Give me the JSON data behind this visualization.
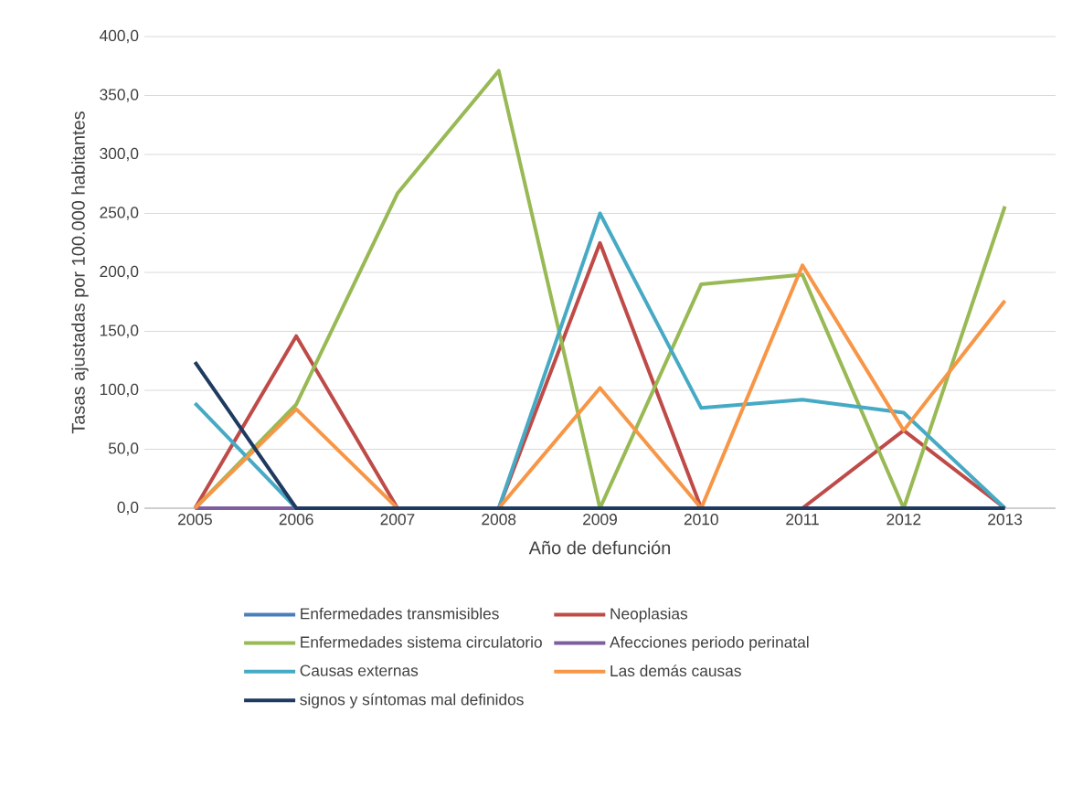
{
  "chart_data": {
    "type": "line",
    "xlabel": "Año de defunción",
    "ylabel": "Tasas ajustadas por 100.000 habitantes",
    "categories": [
      "2005",
      "2006",
      "2007",
      "2008",
      "2009",
      "2010",
      "2011",
      "2012",
      "2013"
    ],
    "ylim": [
      0,
      400
    ],
    "yticks": [
      {
        "value": 0,
        "label": "0,0"
      },
      {
        "value": 50,
        "label": "50,0"
      },
      {
        "value": 100,
        "label": "100,0"
      },
      {
        "value": 150,
        "label": "150,0"
      },
      {
        "value": 200,
        "label": "200,0"
      },
      {
        "value": 250,
        "label": "250,0"
      },
      {
        "value": 300,
        "label": "300,0"
      },
      {
        "value": 350,
        "label": "350,0"
      },
      {
        "value": 400,
        "label": "400,0"
      }
    ],
    "grid": "y",
    "legend": "bottom",
    "marker": "none",
    "line_style": "solid",
    "series": [
      {
        "name": "Enfermedades transmisibles",
        "color": "#4a7ebb",
        "values": [
          null,
          null,
          null,
          null,
          null,
          null,
          null,
          null,
          null
        ]
      },
      {
        "name": "Neoplasias",
        "color": "#be4b48",
        "values": [
          0,
          146,
          0,
          0,
          225,
          0,
          0,
          66,
          0
        ]
      },
      {
        "name": "Enfermedades sistema circulatorio",
        "color": "#98b954",
        "values": [
          0,
          88,
          267,
          371,
          0,
          190,
          198,
          0,
          256
        ]
      },
      {
        "name": "Afecciones periodo perinatal",
        "color": "#7d5fa0",
        "values": [
          0,
          0,
          null,
          null,
          null,
          null,
          null,
          null,
          null
        ]
      },
      {
        "name": "Causas externas",
        "color": "#46aac5",
        "values": [
          89,
          0,
          0,
          0,
          250,
          85,
          92,
          81,
          0
        ]
      },
      {
        "name": "Las demás causas",
        "color": "#f79646",
        "values": [
          0,
          84,
          0,
          0,
          102,
          0,
          206,
          66,
          176
        ]
      },
      {
        "name": "signos y síntomas mal definidos",
        "color": "#1f3a60",
        "values": [
          124,
          0,
          0,
          0,
          0,
          0,
          0,
          0,
          0
        ]
      }
    ]
  }
}
